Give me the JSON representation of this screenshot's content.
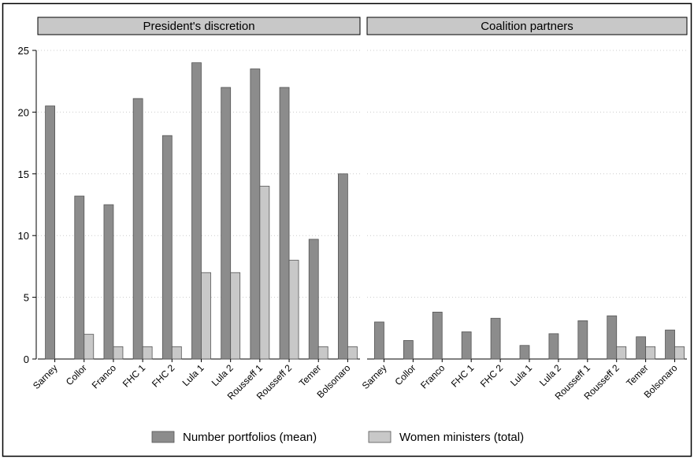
{
  "chart_data": {
    "type": "bar",
    "categories": [
      "Sarney",
      "Collor",
      "Franco",
      "FHC 1",
      "FHC 2",
      "Lula 1",
      "Lula 2",
      "Rousseff 1",
      "Rousseff 2",
      "Temer",
      "Bolsonaro"
    ],
    "ylim": [
      0,
      25
    ],
    "yticks": [
      "0",
      "5",
      "10",
      "15",
      "20",
      "25"
    ],
    "grid": true,
    "legend_position": "bottom",
    "colors": {
      "portfolios": "#8c8c8c",
      "women": "#c8c8c8",
      "panel_header": "#c8c8c8",
      "grid": "#cccccc"
    },
    "legend": [
      {
        "key": "portfolios",
        "label": "Number portfolios (mean)"
      },
      {
        "key": "women",
        "label": "Women ministers (total)"
      }
    ],
    "panels": [
      {
        "title": "President's discretion",
        "series": [
          {
            "key": "portfolios",
            "values": [
              20.5,
              13.2,
              12.5,
              21.1,
              18.1,
              24.0,
              22.0,
              23.5,
              22.0,
              9.7,
              15.0
            ]
          },
          {
            "key": "women",
            "values": [
              0,
              2,
              1,
              1,
              1,
              7,
              7,
              14,
              8,
              1,
              1
            ]
          }
        ]
      },
      {
        "title": "Coalition partners",
        "series": [
          {
            "key": "portfolios",
            "values": [
              3.0,
              1.5,
              3.8,
              2.2,
              3.3,
              1.1,
              2.05,
              3.1,
              3.5,
              1.8,
              2.35
            ]
          },
          {
            "key": "women",
            "values": [
              0,
              0,
              0,
              0,
              0,
              0,
              0,
              0,
              1,
              1,
              1
            ]
          }
        ]
      }
    ]
  }
}
